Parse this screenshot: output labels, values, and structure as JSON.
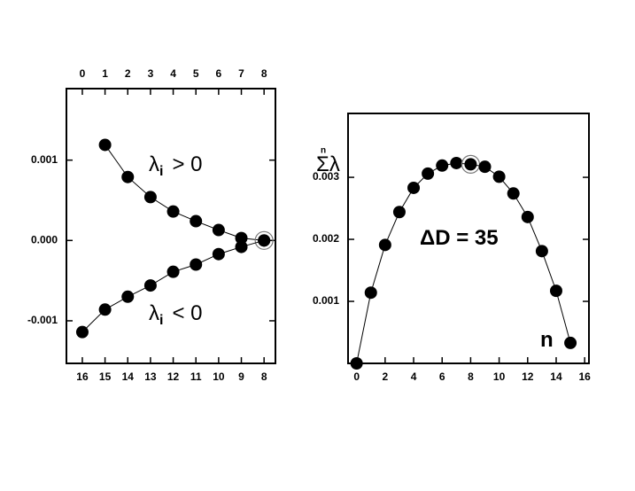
{
  "chart_data": [
    {
      "type": "line",
      "xaxis": "top",
      "xlim": [
        -0.7,
        8.5
      ],
      "xticks": [
        0,
        1,
        2,
        3,
        4,
        5,
        6,
        7,
        8
      ],
      "x2lim": [
        16.7,
        7.5
      ],
      "x2ticks": [
        16,
        15,
        14,
        13,
        12,
        11,
        10,
        9,
        8
      ],
      "ylim": [
        -0.00153,
        0.00189
      ],
      "yticks": [
        -0.001,
        {
          "value": 0,
          "label": "0.000"
        },
        0.001
      ],
      "series": [
        {
          "color": "#000000",
          "x": [
            1,
            2,
            3,
            4,
            5,
            6,
            7,
            8
          ],
          "values": [
            0.00119,
            0.00079,
            0.00054,
            0.00036,
            0.00024,
            0.00013,
            3e-05,
            0
          ],
          "circled_index": 7
        },
        {
          "color": "#000000",
          "axis": "x2",
          "x": [
            16,
            15,
            14,
            13,
            12,
            11,
            10,
            9,
            8
          ],
          "values": [
            -0.00114,
            -0.00086,
            -0.0007,
            -0.00056,
            -0.00039,
            -0.0003,
            -0.00017,
            -8e-05,
            0
          ]
        }
      ],
      "annotations": [
        {
          "text": "λ",
          "sub": "i",
          "rest": "> 0"
        },
        {
          "text": "λ",
          "sub": "i",
          "rest": "< 0"
        }
      ]
    },
    {
      "type": "line",
      "xaxis": "bottom",
      "xlim": [
        -0.6,
        16.3
      ],
      "xticks": [
        0,
        2,
        4,
        6,
        8,
        10,
        12,
        14,
        16
      ],
      "ylim": [
        0,
        0.00403
      ],
      "yticks": [
        0.001,
        0.002,
        0.003
      ],
      "series": [
        {
          "color": "#000000",
          "x": [
            0,
            1,
            2,
            3,
            4,
            5,
            6,
            7,
            8,
            9,
            10,
            11,
            12,
            13,
            14,
            15
          ],
          "values": [
            0,
            0.00114,
            0.00191,
            0.00244,
            0.00283,
            0.00306,
            0.00319,
            0.00323,
            0.00321,
            0.00317,
            0.00301,
            0.00274,
            0.00236,
            0.00181,
            0.00117,
            0.00033
          ],
          "circled_index": 8
        }
      ],
      "annotations": [
        {
          "text": "Σλ",
          "sup": "n"
        },
        {
          "text": "ΔD = 35"
        },
        {
          "text": "n"
        }
      ]
    }
  ]
}
